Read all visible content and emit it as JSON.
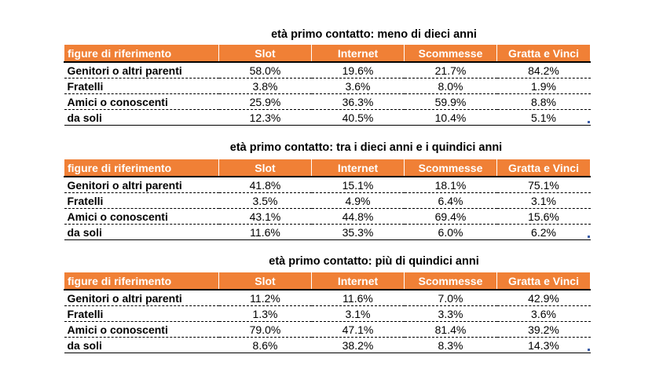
{
  "tables": [
    {
      "caption": "età primo contatto: meno di dieci anni",
      "headers": [
        "figure di riferimento",
        "Slot",
        "Internet",
        "Scommesse",
        "Gratta e Vinci"
      ],
      "rows": [
        [
          "Genitori o altri parenti",
          "58.0%",
          "19.6%",
          "21.7%",
          "84.2%"
        ],
        [
          "Fratelli",
          "3.8%",
          "3.6%",
          "8.0%",
          "1.9%"
        ],
        [
          "Amici o conoscenti",
          "25.9%",
          "36.3%",
          "59.9%",
          "8.8%"
        ],
        [
          "da soli",
          "12.3%",
          "40.5%",
          "10.4%",
          "5.1%"
        ]
      ]
    },
    {
      "caption": "età primo contatto: tra i dieci anni e i quindici anni",
      "headers": [
        "figure di riferimento",
        "Slot",
        "Internet",
        "Scommesse",
        "Gratta e Vinci"
      ],
      "rows": [
        [
          "Genitori o altri parenti",
          "41.8%",
          "15.1%",
          "18.1%",
          "75.1%"
        ],
        [
          "Fratelli",
          "3.5%",
          "4.9%",
          "6.4%",
          "3.1%"
        ],
        [
          "Amici o conoscenti",
          "43.1%",
          "44.8%",
          "69.4%",
          "15.6%"
        ],
        [
          "da soli",
          "11.6%",
          "35.3%",
          "6.0%",
          "6.2%"
        ]
      ]
    },
    {
      "caption": "età primo contatto: più di quindici anni",
      "headers": [
        "figure di riferimento",
        "Slot",
        "Internet",
        "Scommesse",
        "Gratta e Vinci"
      ],
      "rows": [
        [
          "Genitori o altri parenti",
          "11.2%",
          "11.6%",
          "7.0%",
          "42.9%"
        ],
        [
          "Fratelli",
          "1.3%",
          "3.1%",
          "3.3%",
          "3.6%"
        ],
        [
          "Amici o conoscenti",
          "79.0%",
          "47.1%",
          "81.4%",
          "39.2%"
        ],
        [
          "da soli",
          "8.6%",
          "38.2%",
          "8.3%",
          "14.3%"
        ]
      ]
    }
  ],
  "colors": {
    "header_bg": "#F08036",
    "header_text": "#ffffff",
    "corner_marker": "#3E5FA8"
  }
}
